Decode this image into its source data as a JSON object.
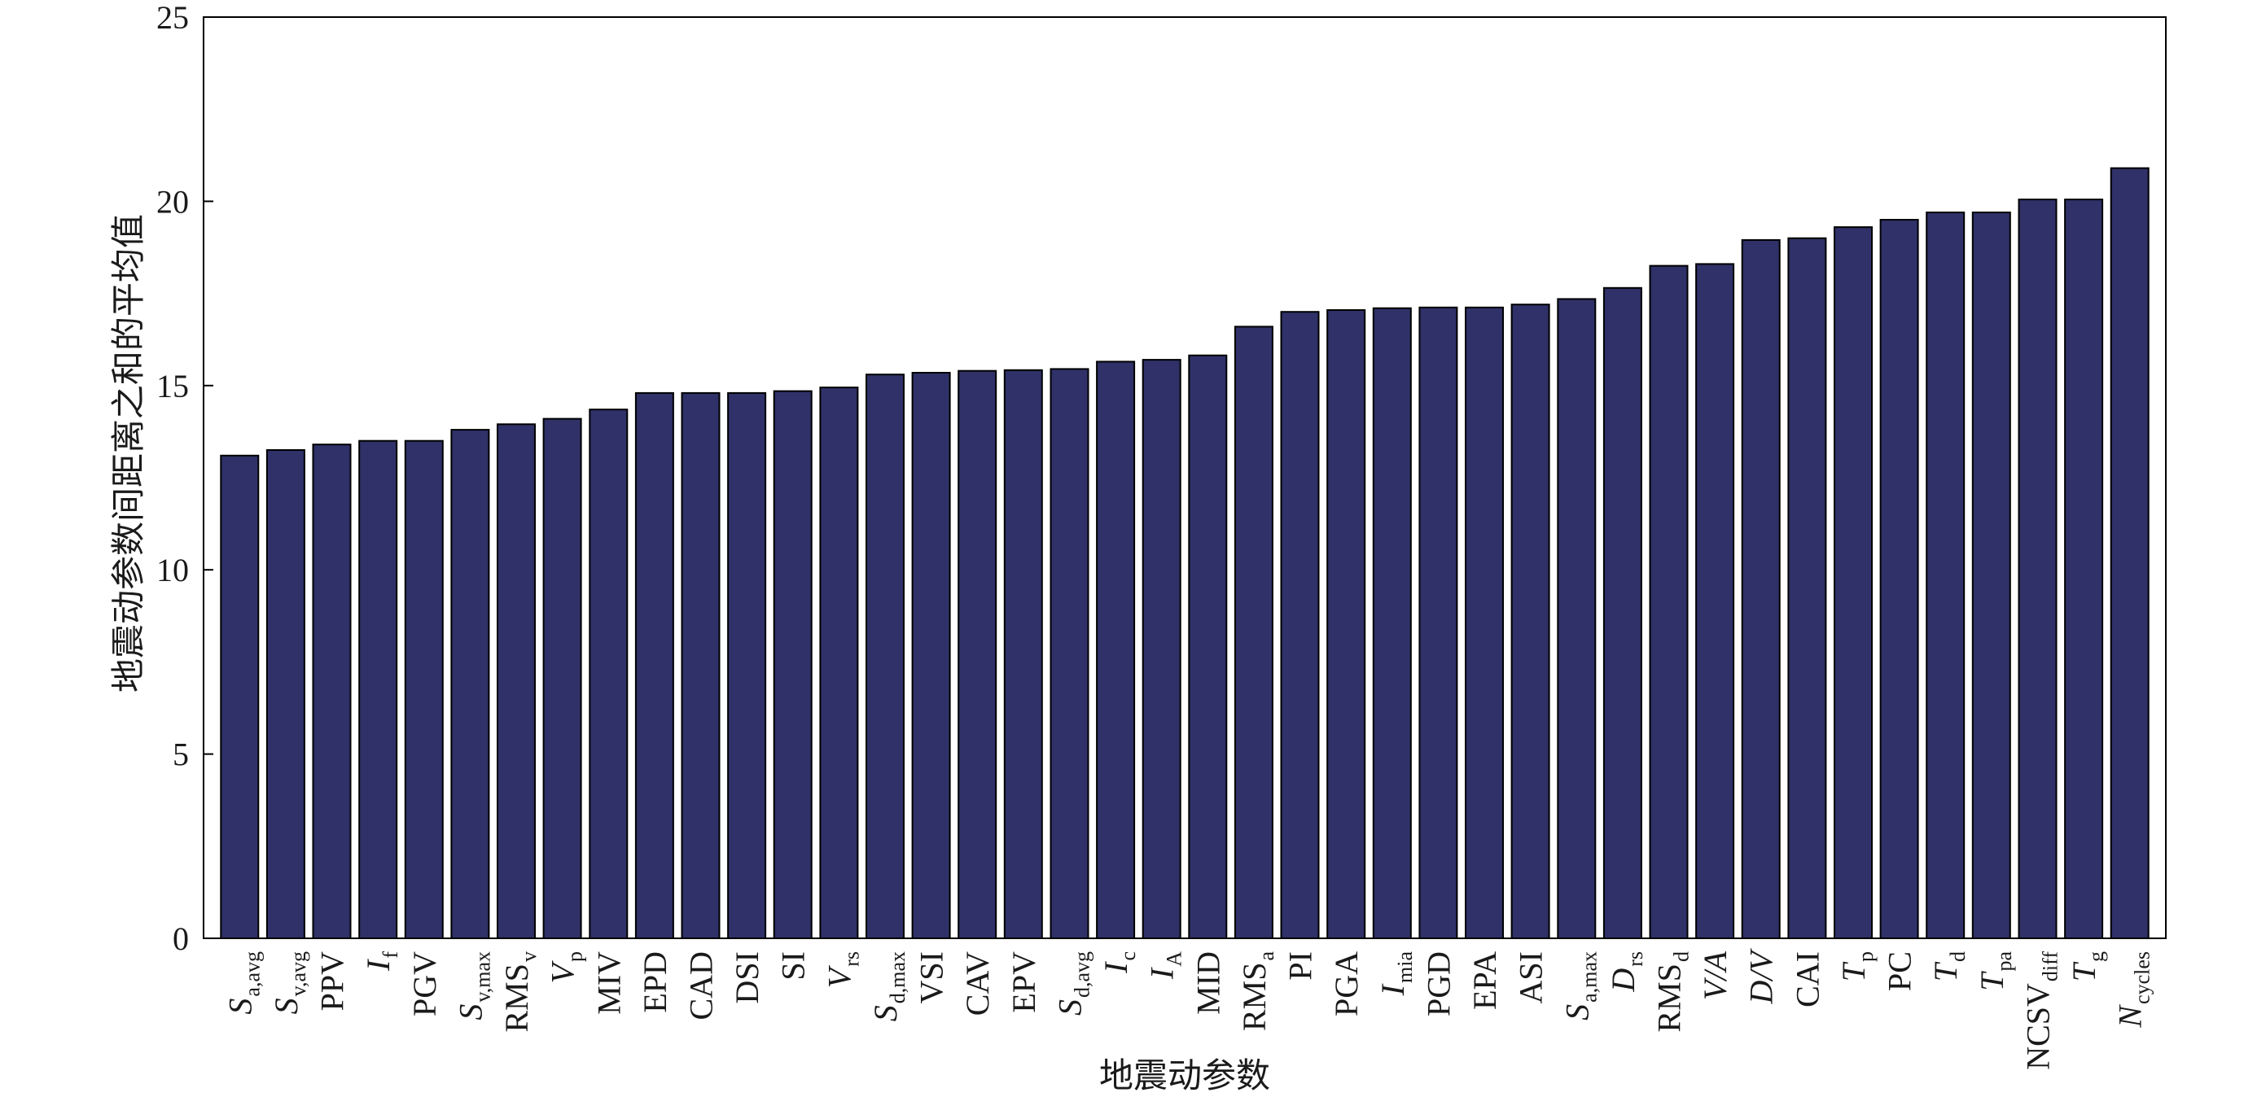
{
  "chart_data": {
    "type": "bar",
    "title": "",
    "xlabel": "地震动参数",
    "ylabel": "地震动参数间距离之和的平均值",
    "ylim": [
      0,
      25
    ],
    "yticks": [
      0,
      5,
      10,
      15,
      20,
      25
    ],
    "grid": false,
    "bar_color": "#2f3168",
    "categories": [
      {
        "base": "S",
        "sub": "a,avg",
        "italic": true
      },
      {
        "base": "S",
        "sub": "v,avg",
        "italic": true
      },
      {
        "base": "PPV",
        "sub": "",
        "italic": false
      },
      {
        "base": "I",
        "sub": "f",
        "italic": true
      },
      {
        "base": "PGV",
        "sub": "",
        "italic": false
      },
      {
        "base": "S",
        "sub": "v,max",
        "italic": true
      },
      {
        "base": "RMS",
        "sub": "v",
        "italic": false
      },
      {
        "base": "V",
        "sub": "p",
        "italic": true
      },
      {
        "base": "MIV",
        "sub": "",
        "italic": false
      },
      {
        "base": "EPD",
        "sub": "",
        "italic": false
      },
      {
        "base": "CAD",
        "sub": "",
        "italic": false
      },
      {
        "base": "DSI",
        "sub": "",
        "italic": false
      },
      {
        "base": "SI",
        "sub": "",
        "italic": false
      },
      {
        "base": "V",
        "sub": "rs",
        "italic": true
      },
      {
        "base": "S",
        "sub": "d,max",
        "italic": true
      },
      {
        "base": "VSI",
        "sub": "",
        "italic": false
      },
      {
        "base": "CAV",
        "sub": "",
        "italic": false
      },
      {
        "base": "EPV",
        "sub": "",
        "italic": false
      },
      {
        "base": "S",
        "sub": "d,avg",
        "italic": true
      },
      {
        "base": "I",
        "sub": "c",
        "italic": true
      },
      {
        "base": "I",
        "sub": "A",
        "italic": true
      },
      {
        "base": "MID",
        "sub": "",
        "italic": false
      },
      {
        "base": "RMS",
        "sub": "a",
        "italic": false
      },
      {
        "base": "PI",
        "sub": "",
        "italic": false
      },
      {
        "base": "PGA",
        "sub": "",
        "italic": false
      },
      {
        "base": "I",
        "sub": "mia",
        "italic": true
      },
      {
        "base": "PGD",
        "sub": "",
        "italic": false
      },
      {
        "base": "EPA",
        "sub": "",
        "italic": false
      },
      {
        "base": "ASI",
        "sub": "",
        "italic": false
      },
      {
        "base": "S",
        "sub": "a,max",
        "italic": true
      },
      {
        "base": "D",
        "sub": "rs",
        "italic": true
      },
      {
        "base": "RMS",
        "sub": "d",
        "italic": false
      },
      {
        "base": "V/A",
        "sub": "",
        "italic": true
      },
      {
        "base": "D/V",
        "sub": "",
        "italic": true
      },
      {
        "base": "CAI",
        "sub": "",
        "italic": false
      },
      {
        "base": "T",
        "sub": "p",
        "italic": true
      },
      {
        "base": "PC",
        "sub": "",
        "italic": false
      },
      {
        "base": "T",
        "sub": "d",
        "italic": true
      },
      {
        "base": "T",
        "sub": "pa",
        "italic": true
      },
      {
        "base": "NCSV",
        "sub": "diff",
        "italic": false
      },
      {
        "base": "T",
        "sub": "g",
        "italic": true
      },
      {
        "base": "N",
        "sub": "cycles",
        "italic": true
      }
    ],
    "values": [
      13.1,
      13.25,
      13.4,
      13.5,
      13.5,
      13.8,
      13.95,
      14.1,
      14.35,
      14.8,
      14.8,
      14.8,
      14.85,
      14.95,
      15.3,
      15.35,
      15.4,
      15.42,
      15.45,
      15.65,
      15.7,
      15.82,
      16.6,
      17.0,
      17.05,
      17.1,
      17.12,
      17.12,
      17.2,
      17.35,
      17.65,
      18.25,
      18.3,
      18.95,
      19.0,
      19.3,
      19.5,
      19.7,
      19.7,
      20.05,
      20.05,
      20.9
    ]
  }
}
